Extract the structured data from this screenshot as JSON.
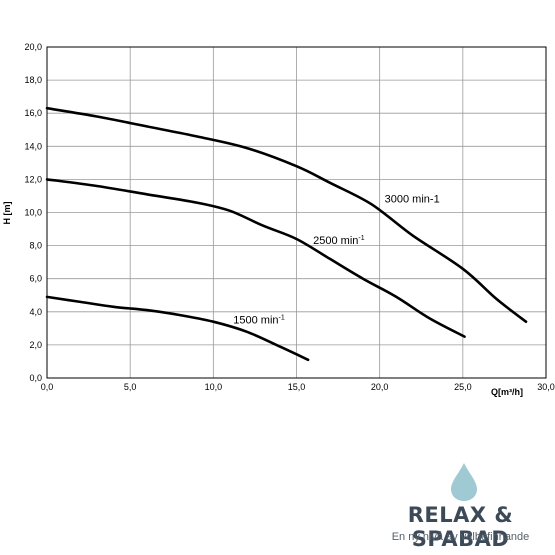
{
  "chart_data": {
    "type": "line",
    "xlabel": "Q[m³/h]",
    "ylabel": "H [m]",
    "xlim": [
      0,
      30
    ],
    "ylim": [
      0,
      20
    ],
    "x_ticks": [
      "0,0",
      "5,0",
      "10,0",
      "15,0",
      "20,0",
      "25,0",
      "30,0"
    ],
    "y_ticks": [
      "0,0",
      "2,0",
      "4,0",
      "6,0",
      "8,0",
      "10,0",
      "12,0",
      "14,0",
      "16,0",
      "18,0",
      "20,0"
    ],
    "grid": true,
    "series": [
      {
        "name": "3000 min-1",
        "points": [
          [
            0,
            16.3
          ],
          [
            3,
            15.8
          ],
          [
            6,
            15.2
          ],
          [
            9,
            14.6
          ],
          [
            12,
            13.9
          ],
          [
            15,
            12.8
          ],
          [
            17,
            11.8
          ],
          [
            19.5,
            10.5
          ],
          [
            22,
            8.6
          ],
          [
            25,
            6.6
          ],
          [
            27,
            4.8
          ],
          [
            28.8,
            3.4
          ]
        ]
      },
      {
        "name": "2500 min",
        "points": [
          [
            0,
            12.0
          ],
          [
            3,
            11.6
          ],
          [
            6,
            11.1
          ],
          [
            9,
            10.6
          ],
          [
            11,
            10.1
          ],
          [
            13,
            9.2
          ],
          [
            15,
            8.4
          ],
          [
            17,
            7.2
          ],
          [
            19,
            6.0
          ],
          [
            21,
            4.9
          ],
          [
            23,
            3.6
          ],
          [
            25.1,
            2.5
          ]
        ]
      },
      {
        "name": "1500 min",
        "points": [
          [
            0,
            4.9
          ],
          [
            2,
            4.6
          ],
          [
            4,
            4.3
          ],
          [
            6,
            4.1
          ],
          [
            8,
            3.8
          ],
          [
            10,
            3.4
          ],
          [
            12,
            2.8
          ],
          [
            14,
            1.9
          ],
          [
            15.7,
            1.1
          ]
        ]
      }
    ],
    "labels": [
      {
        "text": "3000 min-1",
        "sup": "",
        "x": 20.3,
        "y": 10.6
      },
      {
        "text": "2500 min",
        "sup": "-1",
        "x": 16.0,
        "y": 8.1
      },
      {
        "text": "1500 min",
        "sup": "-1",
        "x": 11.2,
        "y": 3.3
      }
    ]
  },
  "brand": {
    "name": "RELAX & SPABAD",
    "tagline": "En ny nivå av välbefinnande",
    "drop_color": "#9fc9d3"
  }
}
